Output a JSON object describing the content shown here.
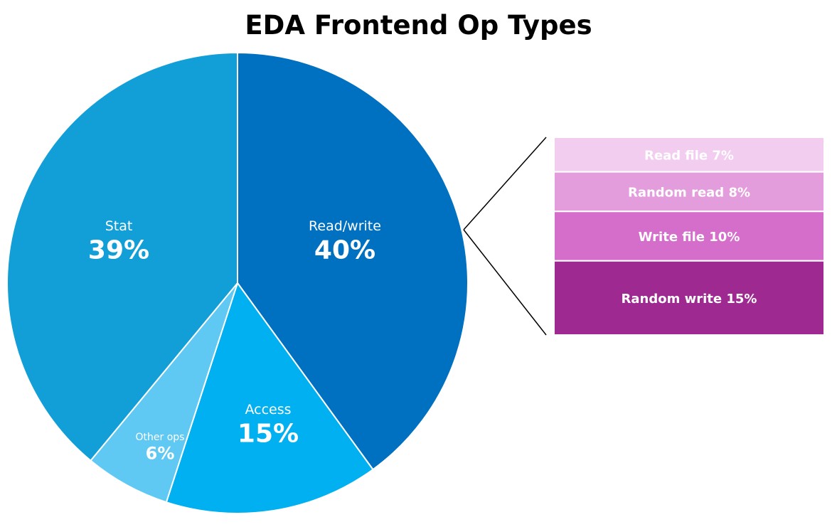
{
  "chart_data": {
    "type": "pie",
    "title": "EDA Frontend Op Types",
    "slices": [
      {
        "label": "Read/write",
        "value": 40,
        "display": "40%",
        "color": "#0070c0"
      },
      {
        "label": "Access",
        "value": 15,
        "display": "15%",
        "color": "#00b0f0"
      },
      {
        "label": "Other ops",
        "value": 6,
        "display": "6%",
        "color": "#5fc9f3"
      },
      {
        "label": "Stat",
        "value": 39,
        "display": "39%",
        "color": "#129fd8"
      }
    ],
    "breakdown": {
      "parent": "Read/write",
      "items": [
        {
          "label": "Read file 7%",
          "value": 7,
          "color": "#f2cdf0"
        },
        {
          "label": "Random read 8%",
          "value": 8,
          "color": "#e39ddc"
        },
        {
          "label": "Write file 10%",
          "value": 10,
          "color": "#d56ecb"
        },
        {
          "label": "Random write 15%",
          "value": 15,
          "color": "#9e2a91"
        }
      ]
    }
  }
}
